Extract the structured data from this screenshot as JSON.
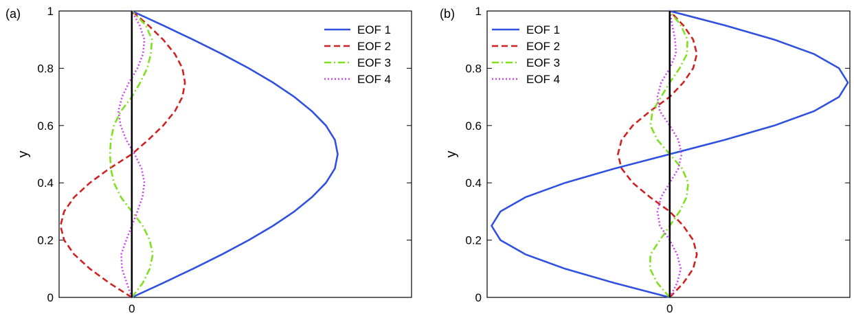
{
  "chart_data": [
    {
      "type": "line",
      "panel_label": "(a)",
      "ylabel": "y",
      "xlim": [
        -0.26,
        1.0
      ],
      "ylim": [
        0,
        1
      ],
      "x_ticks": [
        {
          "value": 0,
          "label": "0"
        }
      ],
      "y_ticks": [
        {
          "value": 0,
          "label": "0"
        },
        {
          "value": 0.2,
          "label": "0.2"
        },
        {
          "value": 0.4,
          "label": "0.4"
        },
        {
          "value": 0.6,
          "label": "0.6"
        },
        {
          "value": 0.8,
          "label": "0.8"
        },
        {
          "value": 1,
          "label": "1"
        }
      ],
      "zero_line": true,
      "legend_position": "top-right",
      "series": [
        {
          "name": "EOF 1",
          "color": "#3050e0",
          "dash": "solid",
          "y": [
            0,
            0.05,
            0.1,
            0.15,
            0.2,
            0.25,
            0.3,
            0.35,
            0.4,
            0.45,
            0.5,
            0.55,
            0.6,
            0.65,
            0.7,
            0.75,
            0.8,
            0.85,
            0.9,
            0.95,
            1
          ],
          "x": [
            0,
            0.111,
            0.219,
            0.322,
            0.418,
            0.505,
            0.581,
            0.644,
            0.694,
            0.726,
            0.736,
            0.726,
            0.694,
            0.644,
            0.581,
            0.505,
            0.418,
            0.322,
            0.219,
            0.111,
            0
          ]
        },
        {
          "name": "EOF 2",
          "color": "#d02020",
          "dash": "dashed",
          "y": [
            0,
            0.05,
            0.1,
            0.15,
            0.2,
            0.25,
            0.3,
            0.35,
            0.4,
            0.45,
            0.5,
            0.55,
            0.6,
            0.65,
            0.7,
            0.75,
            0.8,
            0.85,
            0.9,
            0.95,
            1
          ],
          "x": [
            0,
            -0.08,
            -0.15,
            -0.206,
            -0.242,
            -0.255,
            -0.242,
            -0.206,
            -0.15,
            -0.08,
            0,
            0.059,
            0.112,
            0.154,
            0.181,
            0.19,
            0.181,
            0.154,
            0.112,
            0.059,
            0
          ]
        },
        {
          "name": "EOF 3",
          "color": "#80e020",
          "dash": "dashdot",
          "y": [
            0,
            0.05,
            0.1,
            0.15,
            0.2,
            0.25,
            0.3,
            0.35,
            0.4,
            0.45,
            0.5,
            0.55,
            0.6,
            0.65,
            0.7,
            0.75,
            0.8,
            0.85,
            0.9,
            0.95,
            1
          ],
          "x": [
            0,
            0.039,
            0.064,
            0.075,
            0.064,
            0.039,
            0,
            -0.039,
            -0.064,
            -0.075,
            -0.078,
            -0.075,
            -0.064,
            -0.039,
            0,
            0.03,
            0.055,
            0.068,
            0.072,
            0.05,
            0
          ]
        },
        {
          "name": "EOF 4",
          "color": "#cc44ee",
          "dash": "dotted",
          "y": [
            0,
            0.05,
            0.1,
            0.15,
            0.2,
            0.25,
            0.3,
            0.35,
            0.4,
            0.45,
            0.5,
            0.55,
            0.6,
            0.65,
            0.7,
            0.75,
            0.8,
            0.85,
            0.9,
            0.95,
            1
          ],
          "x": [
            0,
            -0.018,
            -0.035,
            -0.038,
            -0.02,
            0,
            0.02,
            0.038,
            0.045,
            0.035,
            0.01,
            -0.02,
            -0.04,
            -0.048,
            -0.035,
            -0.01,
            0.02,
            0.04,
            0.045,
            0.028,
            0
          ]
        }
      ]
    },
    {
      "type": "line",
      "panel_label": "(b)",
      "ylabel": "y",
      "xlim": [
        -0.74,
        0.73
      ],
      "ylim": [
        0,
        1
      ],
      "x_ticks": [
        {
          "value": 0,
          "label": "0"
        }
      ],
      "y_ticks": [
        {
          "value": 0,
          "label": "0"
        },
        {
          "value": 0.2,
          "label": "0.2"
        },
        {
          "value": 0.4,
          "label": "0.4"
        },
        {
          "value": 0.6,
          "label": "0.6"
        },
        {
          "value": 0.8,
          "label": "0.8"
        },
        {
          "value": 1,
          "label": "1"
        }
      ],
      "zero_line": true,
      "legend_position": "top-left",
      "series": [
        {
          "name": "EOF 1",
          "color": "#3050e0",
          "dash": "solid",
          "y": [
            0,
            0.05,
            0.1,
            0.15,
            0.2,
            0.25,
            0.3,
            0.35,
            0.4,
            0.45,
            0.5,
            0.55,
            0.6,
            0.65,
            0.7,
            0.75,
            0.8,
            0.85,
            0.9,
            0.95,
            1
          ],
          "x": [
            0,
            -0.223,
            -0.424,
            -0.584,
            -0.686,
            -0.722,
            -0.686,
            -0.584,
            -0.424,
            -0.223,
            0,
            0.223,
            0.424,
            0.584,
            0.686,
            0.722,
            0.686,
            0.584,
            0.424,
            0.223,
            0
          ]
        },
        {
          "name": "EOF 2",
          "color": "#d02020",
          "dash": "dashed",
          "y": [
            0,
            0.05,
            0.1,
            0.15,
            0.2,
            0.25,
            0.3,
            0.35,
            0.4,
            0.45,
            0.5,
            0.55,
            0.6,
            0.65,
            0.7,
            0.75,
            0.8,
            0.85,
            0.9,
            0.95,
            1
          ],
          "x": [
            0,
            0.055,
            0.095,
            0.11,
            0.095,
            0.055,
            0,
            -0.08,
            -0.15,
            -0.195,
            -0.21,
            -0.195,
            -0.15,
            -0.08,
            0,
            0.055,
            0.095,
            0.11,
            0.095,
            0.055,
            0
          ]
        },
        {
          "name": "EOF 3",
          "color": "#80e020",
          "dash": "dashdot",
          "y": [
            0,
            0.05,
            0.1,
            0.15,
            0.2,
            0.25,
            0.3,
            0.35,
            0.4,
            0.45,
            0.5,
            0.55,
            0.6,
            0.65,
            0.7,
            0.75,
            0.8,
            0.85,
            0.9,
            0.95,
            1
          ],
          "x": [
            0,
            -0.05,
            -0.08,
            -0.078,
            -0.04,
            0,
            0.04,
            0.068,
            0.075,
            0.05,
            0,
            -0.05,
            -0.078,
            -0.07,
            -0.035,
            0,
            0.04,
            0.07,
            0.072,
            0.045,
            0
          ]
        },
        {
          "name": "EOF 4",
          "color": "#cc44ee",
          "dash": "dotted",
          "y": [
            0,
            0.05,
            0.1,
            0.15,
            0.2,
            0.25,
            0.3,
            0.35,
            0.4,
            0.45,
            0.5,
            0.55,
            0.6,
            0.65,
            0.7,
            0.75,
            0.8,
            0.85,
            0.9,
            0.95,
            1
          ],
          "x": [
            0,
            0.03,
            0.045,
            0.03,
            0,
            -0.04,
            -0.05,
            -0.035,
            0,
            0.035,
            0.048,
            0.035,
            0,
            -0.04,
            -0.05,
            -0.035,
            0,
            0.025,
            0.022,
            0.01,
            0
          ]
        }
      ]
    }
  ]
}
